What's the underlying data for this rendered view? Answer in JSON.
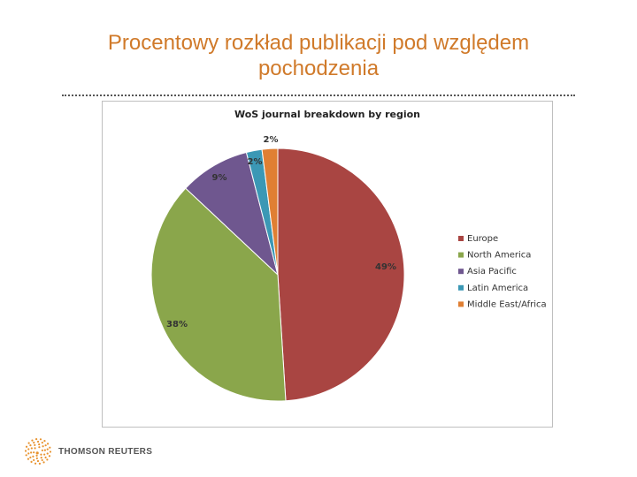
{
  "slide": {
    "title_line1": "Procentowy rozkład publikacji pod względem",
    "title_line2": "pochodzenia"
  },
  "footer": {
    "brand_name": "THOMSON REUTERS",
    "brand_color": "#e8932f"
  },
  "chart_data": {
    "type": "pie",
    "title": "WoS journal breakdown by region",
    "categories": [
      "Europe",
      "North America",
      "Asia Pacific",
      "Latin America",
      "Middle East/Africa"
    ],
    "values": [
      49,
      38,
      9,
      2,
      2
    ],
    "labels": [
      "49%",
      "38%",
      "9%",
      "2%",
      "2%"
    ],
    "colors": [
      "#a94542",
      "#8aa64b",
      "#6f578f",
      "#3b98b5",
      "#e07f33"
    ],
    "legend": "right"
  }
}
